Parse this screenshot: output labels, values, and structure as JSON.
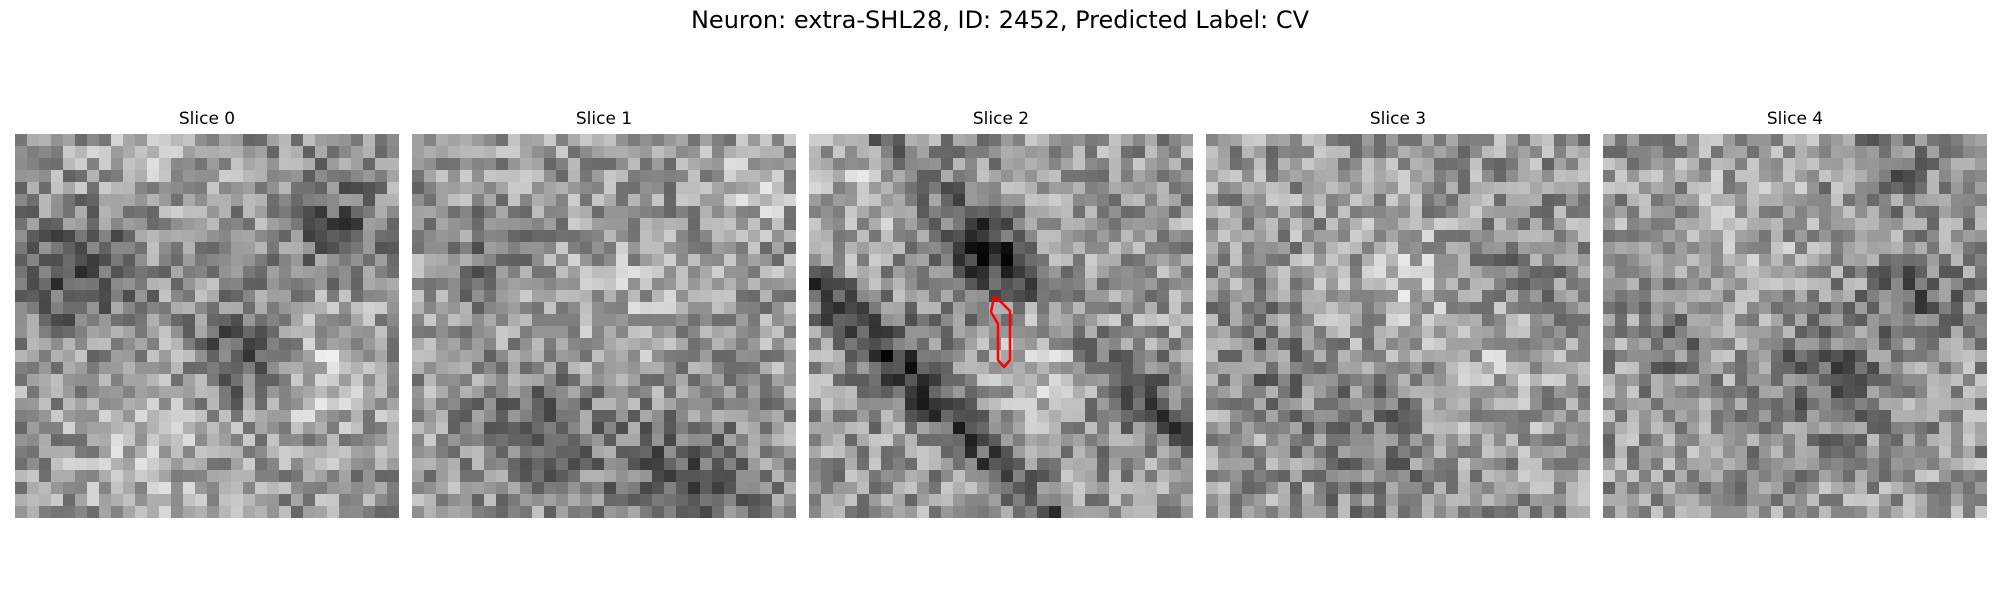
{
  "figure": {
    "title": "Neuron: extra-SHL28, ID: 2452, Predicted Label: CV"
  },
  "panels": [
    {
      "title": "Slice 0"
    },
    {
      "title": "Slice 1"
    },
    {
      "title": "Slice 2"
    },
    {
      "title": "Slice 3"
    },
    {
      "title": "Slice 4"
    }
  ],
  "colors": {
    "background": "#ffffff",
    "contour": "#ff0000",
    "colormap": "gray"
  }
}
